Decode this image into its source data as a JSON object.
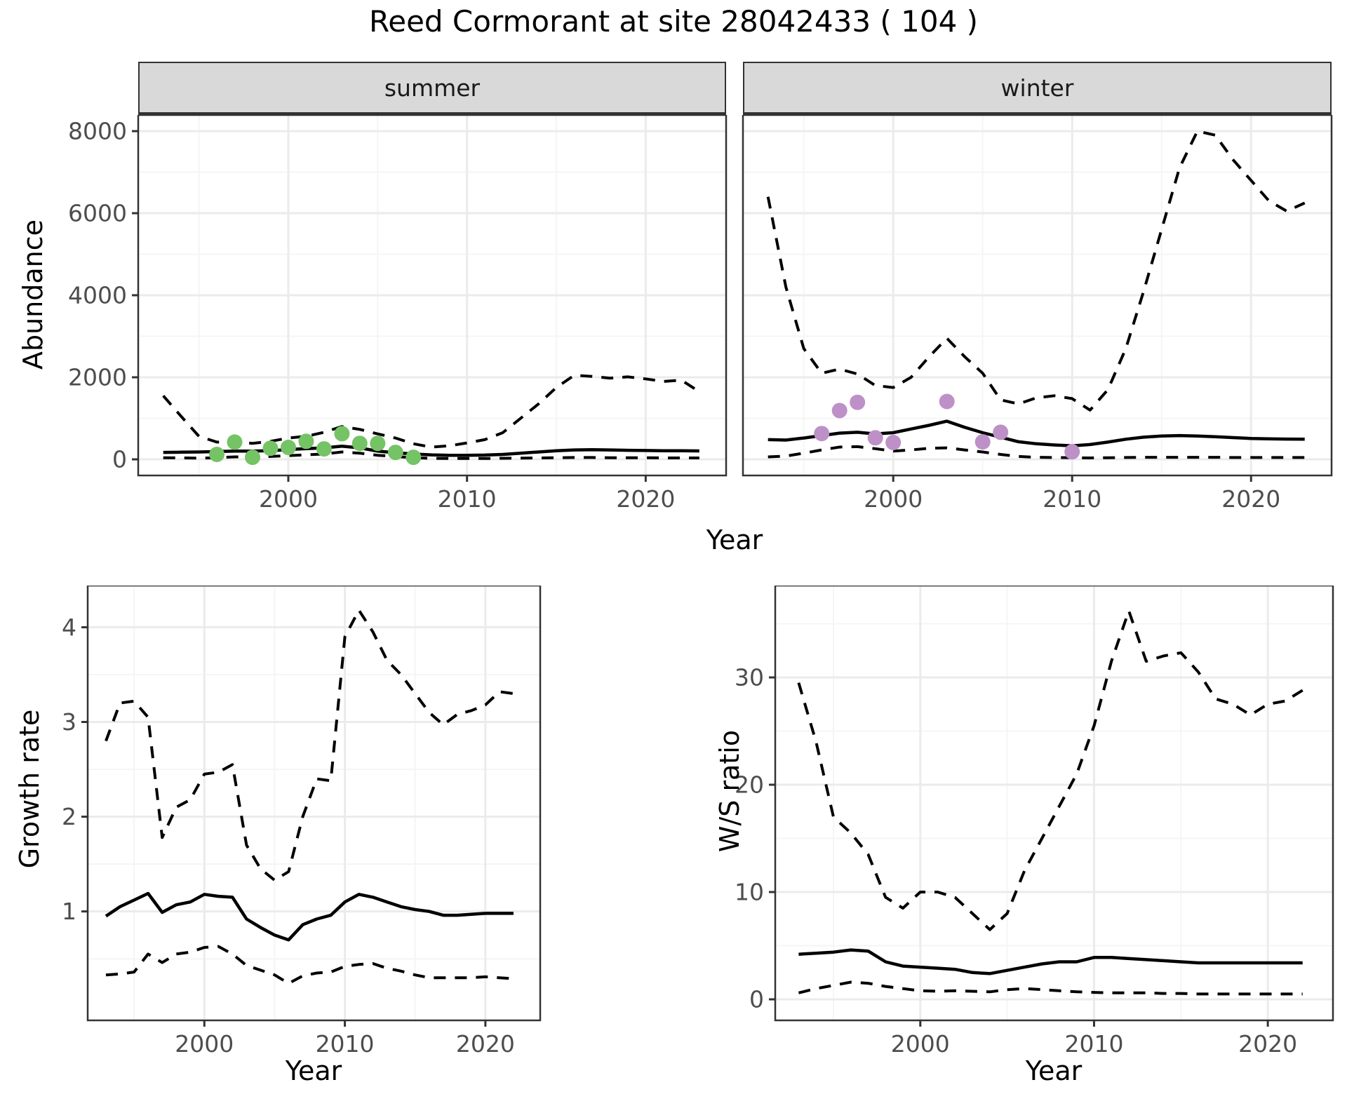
{
  "page": {
    "title": "Reed Cormorant at site 28042433 ( 104 )",
    "background": "#ffffff"
  },
  "labels": {
    "x_axis_top": "Year",
    "x_axis_bottom_left": "Year",
    "x_axis_bottom_right": "Year",
    "y_axis_top": "Abundance",
    "y_axis_growth": "Growth rate",
    "y_axis_ws": "W/S ratio"
  },
  "facets": {
    "summer": "summer",
    "winter": "winter"
  },
  "colors": {
    "summer_points": "#74c365",
    "winter_points": "#be90c8",
    "line": "#000000",
    "strip_bg": "#d9d9d9",
    "grid_major": "#ebebeb",
    "grid_minor": "#f5f5f5",
    "panel_border": "#333333",
    "tick_mark": "#333333",
    "tick_text": "#4d4d4d"
  },
  "chart_data": [
    {
      "id": "abundance-summer",
      "type": "line",
      "facet": "summer",
      "title": "",
      "xlabel": "Year",
      "ylabel": "Abundance",
      "grid": true,
      "legend_position": "none",
      "xlim": [
        1991.6,
        2024.5
      ],
      "ylim": [
        -393,
        8393
      ],
      "x_major": [
        2000,
        2010,
        2020
      ],
      "x_minor": [
        1995,
        2005,
        2015
      ],
      "y_major": [
        0,
        2000,
        4000,
        6000,
        8000
      ],
      "y_minor": [
        1000,
        3000,
        5000,
        7000
      ],
      "series": [
        {
          "name": "upper_ci",
          "style": "dashed",
          "x": [
            1993,
            1994,
            1995,
            1996,
            1997,
            1998,
            1999,
            2000,
            2001,
            2002,
            2003,
            2004,
            2005,
            2006,
            2007,
            2008,
            2009,
            2010,
            2011,
            2012,
            2013,
            2014,
            2015,
            2016,
            2017,
            2018,
            2019,
            2020,
            2021,
            2022,
            2023
          ],
          "y": [
            1550,
            1050,
            560,
            420,
            430,
            390,
            440,
            520,
            560,
            660,
            800,
            730,
            620,
            520,
            380,
            300,
            330,
            400,
            480,
            650,
            1000,
            1350,
            1750,
            2050,
            2020,
            1980,
            2010,
            1960,
            1900,
            1930,
            1650
          ]
        },
        {
          "name": "lower_ci",
          "style": "dashed",
          "x": [
            1993,
            1994,
            1995,
            1996,
            1997,
            1998,
            1999,
            2000,
            2001,
            2002,
            2003,
            2004,
            2005,
            2006,
            2007,
            2008,
            2009,
            2010,
            2011,
            2012,
            2013,
            2014,
            2015,
            2016,
            2017,
            2018,
            2019,
            2020,
            2021,
            2022,
            2023
          ],
          "y": [
            40,
            35,
            30,
            40,
            60,
            60,
            70,
            90,
            110,
            130,
            180,
            150,
            100,
            70,
            40,
            25,
            20,
            20,
            20,
            25,
            30,
            35,
            40,
            45,
            45,
            40,
            40,
            40,
            35,
            35,
            35
          ]
        },
        {
          "name": "median",
          "style": "solid",
          "x": [
            1993,
            1994,
            1995,
            1996,
            1997,
            1998,
            1999,
            2000,
            2001,
            2002,
            2003,
            2004,
            2005,
            2006,
            2007,
            2008,
            2009,
            2010,
            2011,
            2012,
            2013,
            2014,
            2015,
            2016,
            2017,
            2018,
            2019,
            2020,
            2021,
            2022,
            2023
          ],
          "y": [
            170,
            175,
            180,
            190,
            200,
            200,
            210,
            240,
            260,
            280,
            320,
            280,
            200,
            160,
            130,
            110,
            100,
            100,
            105,
            120,
            150,
            180,
            210,
            230,
            235,
            230,
            220,
            215,
            210,
            210,
            205
          ]
        }
      ],
      "points": {
        "name": "observed-summer-counts",
        "color_key": "summer_points",
        "x": [
          1996,
          1997,
          1998,
          1999,
          2000,
          2001,
          2002,
          2003,
          2004,
          2005,
          2006,
          2007
        ],
        "y": [
          120,
          420,
          50,
          270,
          290,
          440,
          255,
          625,
          390,
          390,
          170,
          50
        ]
      }
    },
    {
      "id": "abundance-winter",
      "type": "line",
      "facet": "winter",
      "title": "",
      "xlabel": "Year",
      "ylabel": "Abundance",
      "grid": true,
      "legend_position": "none",
      "xlim": [
        1991.6,
        2024.5
      ],
      "ylim": [
        -393,
        8393
      ],
      "x_major": [
        2000,
        2010,
        2020
      ],
      "x_minor": [
        1995,
        2005,
        2015
      ],
      "y_major": [
        0,
        2000,
        4000,
        6000,
        8000
      ],
      "y_minor": [
        1000,
        3000,
        5000,
        7000
      ],
      "series": [
        {
          "name": "upper_ci",
          "style": "dashed",
          "x": [
            1993,
            1994,
            1995,
            1996,
            1997,
            1998,
            1999,
            2000,
            2001,
            2002,
            2003,
            2004,
            2005,
            2006,
            2007,
            2008,
            2009,
            2010,
            2011,
            2012,
            2013,
            2014,
            2015,
            2016,
            2017,
            2018,
            2019,
            2020,
            2021,
            2022,
            2023
          ],
          "y": [
            6400,
            4200,
            2700,
            2100,
            2200,
            2080,
            1800,
            1750,
            2000,
            2500,
            2950,
            2500,
            2100,
            1450,
            1350,
            1500,
            1550,
            1480,
            1200,
            1700,
            2700,
            4100,
            5600,
            7100,
            8000,
            7900,
            7300,
            6800,
            6300,
            6050,
            6250
          ]
        },
        {
          "name": "lower_ci",
          "style": "dashed",
          "x": [
            1993,
            1994,
            1995,
            1996,
            1997,
            1998,
            1999,
            2000,
            2001,
            2002,
            2003,
            2004,
            2005,
            2006,
            2007,
            2008,
            2009,
            2010,
            2011,
            2012,
            2013,
            2014,
            2015,
            2016,
            2017,
            2018,
            2019,
            2020,
            2021,
            2022,
            2023
          ],
          "y": [
            60,
            80,
            150,
            230,
            300,
            310,
            260,
            200,
            230,
            270,
            280,
            230,
            180,
            120,
            70,
            50,
            45,
            40,
            35,
            40,
            45,
            50,
            50,
            50,
            50,
            50,
            45,
            45,
            45,
            45,
            45
          ]
        },
        {
          "name": "median",
          "style": "solid",
          "x": [
            1993,
            1994,
            1995,
            1996,
            1997,
            1998,
            1999,
            2000,
            2001,
            2002,
            2003,
            2004,
            2005,
            2006,
            2007,
            2008,
            2009,
            2010,
            2011,
            2012,
            2013,
            2014,
            2015,
            2016,
            2017,
            2018,
            2019,
            2020,
            2021,
            2022,
            2023
          ],
          "y": [
            480,
            470,
            520,
            580,
            640,
            660,
            620,
            650,
            740,
            830,
            930,
            780,
            650,
            540,
            430,
            380,
            350,
            330,
            360,
            420,
            490,
            540,
            570,
            580,
            570,
            550,
            530,
            510,
            500,
            495,
            490
          ]
        }
      ],
      "points": {
        "name": "observed-winter-counts",
        "color_key": "winter_points",
        "x": [
          1996,
          1997,
          1998,
          1999,
          2000,
          2003,
          2005,
          2006,
          2010
        ],
        "y": [
          630,
          1190,
          1390,
          525,
          410,
          1410,
          425,
          660,
          185
        ]
      }
    },
    {
      "id": "growth-rate",
      "type": "line",
      "facet": "",
      "title": "",
      "xlabel": "Year",
      "ylabel": "Growth rate",
      "grid": true,
      "legend_position": "none",
      "xlim": [
        1991.7,
        2023.9
      ],
      "ylim": [
        -0.15,
        4.44
      ],
      "x_major": [
        2000,
        2010,
        2020
      ],
      "x_minor": [
        1995,
        2005,
        2015
      ],
      "y_major": [
        1,
        2,
        3,
        4
      ],
      "y_minor": [
        0.5,
        1.5,
        2.5,
        3.5
      ],
      "series": [
        {
          "name": "upper_ci",
          "style": "dashed",
          "x": [
            1993,
            1994,
            1995,
            1996,
            1997,
            1998,
            1999,
            2000,
            2001,
            2002,
            2003,
            2004,
            2005,
            2006,
            2007,
            2008,
            2009,
            2010,
            2011,
            2012,
            2013,
            2014,
            2015,
            2016,
            2017,
            2018,
            2019,
            2020,
            2021,
            2022
          ],
          "y": [
            2.8,
            3.2,
            3.22,
            3.05,
            1.78,
            2.1,
            2.18,
            2.45,
            2.47,
            2.55,
            1.7,
            1.45,
            1.33,
            1.42,
            2.0,
            2.4,
            2.38,
            3.9,
            4.18,
            3.95,
            3.65,
            3.5,
            3.3,
            3.1,
            2.97,
            3.08,
            3.12,
            3.18,
            3.32,
            3.3
          ]
        },
        {
          "name": "lower_ci",
          "style": "dashed",
          "x": [
            1993,
            1994,
            1995,
            1996,
            1997,
            1998,
            1999,
            2000,
            2001,
            2002,
            2003,
            2004,
            2005,
            2006,
            2007,
            2008,
            2009,
            2010,
            2011,
            2012,
            2013,
            2014,
            2015,
            2016,
            2017,
            2018,
            2019,
            2020,
            2021,
            2022
          ],
          "y": [
            0.33,
            0.34,
            0.36,
            0.55,
            0.46,
            0.55,
            0.57,
            0.62,
            0.63,
            0.55,
            0.43,
            0.38,
            0.33,
            0.24,
            0.32,
            0.35,
            0.36,
            0.42,
            0.44,
            0.45,
            0.4,
            0.37,
            0.33,
            0.3,
            0.3,
            0.3,
            0.3,
            0.31,
            0.3,
            0.29
          ]
        },
        {
          "name": "median",
          "style": "solid",
          "x": [
            1993,
            1994,
            1995,
            1996,
            1997,
            1998,
            1999,
            2000,
            2001,
            2002,
            2003,
            2004,
            2005,
            2006,
            2007,
            2008,
            2009,
            2010,
            2011,
            2012,
            2013,
            2014,
            2015,
            2016,
            2017,
            2018,
            2019,
            2020,
            2021,
            2022
          ],
          "y": [
            0.95,
            1.05,
            1.12,
            1.19,
            0.99,
            1.07,
            1.1,
            1.18,
            1.16,
            1.15,
            0.92,
            0.83,
            0.75,
            0.7,
            0.86,
            0.92,
            0.96,
            1.1,
            1.18,
            1.15,
            1.1,
            1.05,
            1.02,
            1.0,
            0.96,
            0.96,
            0.97,
            0.98,
            0.98,
            0.98
          ]
        }
      ],
      "points": null
    },
    {
      "id": "ws-ratio",
      "type": "line",
      "facet": "",
      "title": "",
      "xlabel": "Year",
      "ylabel": "W/S ratio",
      "grid": true,
      "legend_position": "none",
      "xlim": [
        1991.65,
        2023.75
      ],
      "ylim": [
        -1.96,
        38.56
      ],
      "x_major": [
        2000,
        2010,
        2020
      ],
      "x_minor": [
        1995,
        2005,
        2015
      ],
      "y_major": [
        0,
        10,
        20,
        30
      ],
      "y_minor": [
        5,
        15,
        25,
        35
      ],
      "series": [
        {
          "name": "upper_ci",
          "style": "dashed",
          "x": [
            1993,
            1994,
            1995,
            1996,
            1997,
            1998,
            1999,
            2000,
            2001,
            2002,
            2003,
            2004,
            2005,
            2006,
            2007,
            2008,
            2009,
            2010,
            2011,
            2012,
            2013,
            2014,
            2015,
            2016,
            2017,
            2018,
            2019,
            2020,
            2021,
            2022
          ],
          "y": [
            29.5,
            24.0,
            17.0,
            15.5,
            13.5,
            9.5,
            8.5,
            10.0,
            10.0,
            9.5,
            8.0,
            6.5,
            8.0,
            12.0,
            15.0,
            18.0,
            21.0,
            25.5,
            31.5,
            36.2,
            31.5,
            32.0,
            32.3,
            30.5,
            28.0,
            27.5,
            26.5,
            27.5,
            27.8,
            28.8
          ]
        },
        {
          "name": "lower_ci",
          "style": "dashed",
          "x": [
            1993,
            1994,
            1995,
            1996,
            1997,
            1998,
            1999,
            2000,
            2001,
            2002,
            2003,
            2004,
            2005,
            2006,
            2007,
            2008,
            2009,
            2010,
            2011,
            2012,
            2013,
            2014,
            2015,
            2016,
            2017,
            2018,
            2019,
            2020,
            2021,
            2022
          ],
          "y": [
            0.6,
            1.0,
            1.3,
            1.6,
            1.5,
            1.2,
            1.0,
            0.8,
            0.75,
            0.8,
            0.75,
            0.7,
            0.9,
            1.0,
            0.9,
            0.8,
            0.7,
            0.65,
            0.6,
            0.6,
            0.6,
            0.55,
            0.55,
            0.5,
            0.5,
            0.5,
            0.5,
            0.5,
            0.5,
            0.5
          ]
        },
        {
          "name": "median",
          "style": "solid",
          "x": [
            1993,
            1994,
            1995,
            1996,
            1997,
            1998,
            1999,
            2000,
            2001,
            2002,
            2003,
            2004,
            2005,
            2006,
            2007,
            2008,
            2009,
            2010,
            2011,
            2012,
            2013,
            2014,
            2015,
            2016,
            2017,
            2018,
            2019,
            2020,
            2021,
            2022
          ],
          "y": [
            4.2,
            4.3,
            4.4,
            4.6,
            4.5,
            3.5,
            3.1,
            3.0,
            2.9,
            2.8,
            2.5,
            2.4,
            2.7,
            3.0,
            3.3,
            3.5,
            3.5,
            3.9,
            3.9,
            3.8,
            3.7,
            3.6,
            3.5,
            3.4,
            3.4,
            3.4,
            3.4,
            3.4,
            3.4,
            3.4
          ]
        }
      ],
      "points": null
    }
  ]
}
